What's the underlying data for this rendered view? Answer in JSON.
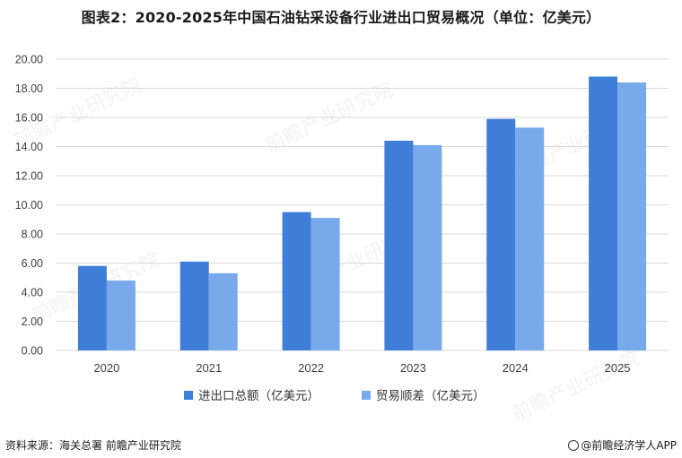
{
  "title": "图表2：2020-2025年中国石油钻采设备行业进出口贸易概况（单位：亿美元）",
  "footer": {
    "source": "资料来源：海关总署  前瞻产业研究院",
    "brand": "@前瞻经济学人APP"
  },
  "watermark": "前瞻产业研究院",
  "colors": {
    "series1": "#3e7ed9",
    "series2": "#78a9ea",
    "grid": "#d9d9d9",
    "axis_text": "#404040"
  },
  "chart_data": {
    "type": "bar",
    "title": "图表2：2020-2025年中国石油钻采设备行业进出口贸易概况（单位：亿美元）",
    "categories": [
      "2020",
      "2021",
      "2022",
      "2023",
      "2024",
      "2025"
    ],
    "series": [
      {
        "name": "进出口总额（亿美元）",
        "values": [
          5.8,
          6.1,
          9.5,
          14.4,
          15.9,
          18.8
        ]
      },
      {
        "name": "贸易顺差（亿美元）",
        "values": [
          4.8,
          5.3,
          9.1,
          14.1,
          15.3,
          18.4
        ]
      }
    ],
    "yticks": [
      "0.00",
      "2.00",
      "4.00",
      "6.00",
      "8.00",
      "10.00",
      "12.00",
      "14.00",
      "16.00",
      "18.00",
      "20.00"
    ],
    "ylim": [
      0,
      20
    ],
    "xlabel": "",
    "ylabel": "",
    "grid": true,
    "legend": "bottom"
  }
}
